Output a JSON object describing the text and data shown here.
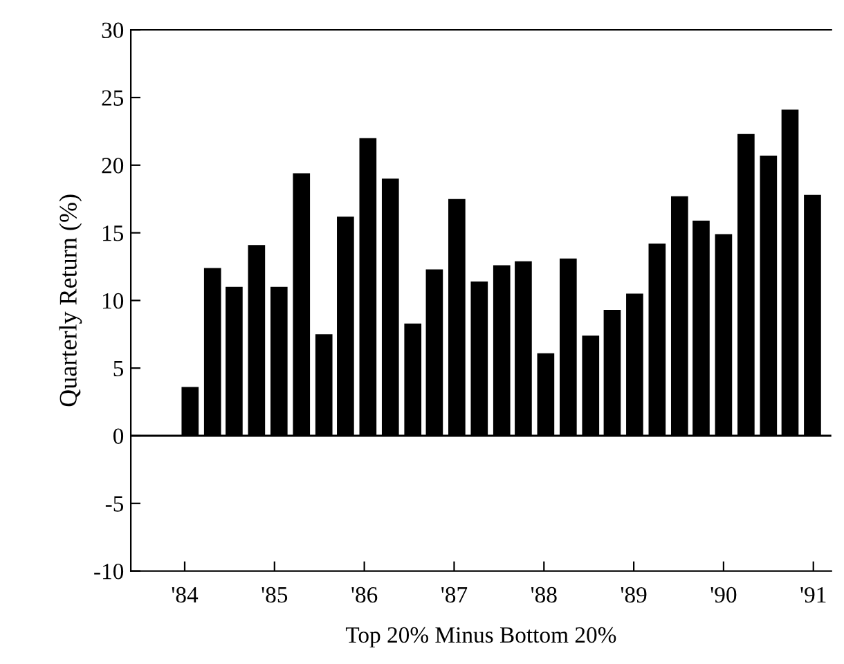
{
  "chart_data": {
    "type": "bar",
    "xlabel": "Top 20% Minus Bottom 20%",
    "ylabel": "Quarterly Return (%)",
    "color": "#000000",
    "x": [
      1984.06,
      1984.31,
      1984.55,
      1984.8,
      1985.05,
      1985.3,
      1985.55,
      1985.79,
      1986.04,
      1986.29,
      1986.54,
      1986.78,
      1987.03,
      1987.28,
      1987.53,
      1987.77,
      1988.02,
      1988.27,
      1988.52,
      1988.76,
      1989.01,
      1989.26,
      1989.51,
      1989.75,
      1990.0,
      1990.25,
      1990.5,
      1990.74,
      1990.99
    ],
    "values": [
      3.6,
      12.4,
      11.0,
      14.1,
      11.0,
      19.4,
      7.5,
      16.2,
      22.0,
      19.0,
      8.3,
      12.3,
      17.5,
      11.4,
      12.6,
      12.9,
      6.1,
      13.1,
      7.4,
      9.3,
      10.5,
      14.2,
      17.7,
      15.9,
      14.9,
      22.3,
      20.7,
      24.1,
      17.8
    ],
    "xlim": [
      1983.4,
      1991.2
    ],
    "ylim": [
      -10,
      30
    ],
    "xticks": [
      {
        "value": 1984,
        "label": "'84"
      },
      {
        "value": 1985,
        "label": "'85"
      },
      {
        "value": 1986,
        "label": "'86"
      },
      {
        "value": 1987,
        "label": "'87"
      },
      {
        "value": 1988,
        "label": "'88"
      },
      {
        "value": 1989,
        "label": "'89"
      },
      {
        "value": 1990,
        "label": "'90"
      },
      {
        "value": 1991,
        "label": "'91"
      }
    ],
    "yticks": [
      -10,
      -5,
      0,
      5,
      10,
      15,
      20,
      25,
      30
    ],
    "ref_lines": [
      {
        "axis": "y",
        "value": 0,
        "color": "#000000"
      }
    ],
    "grid": false,
    "legend": false
  }
}
